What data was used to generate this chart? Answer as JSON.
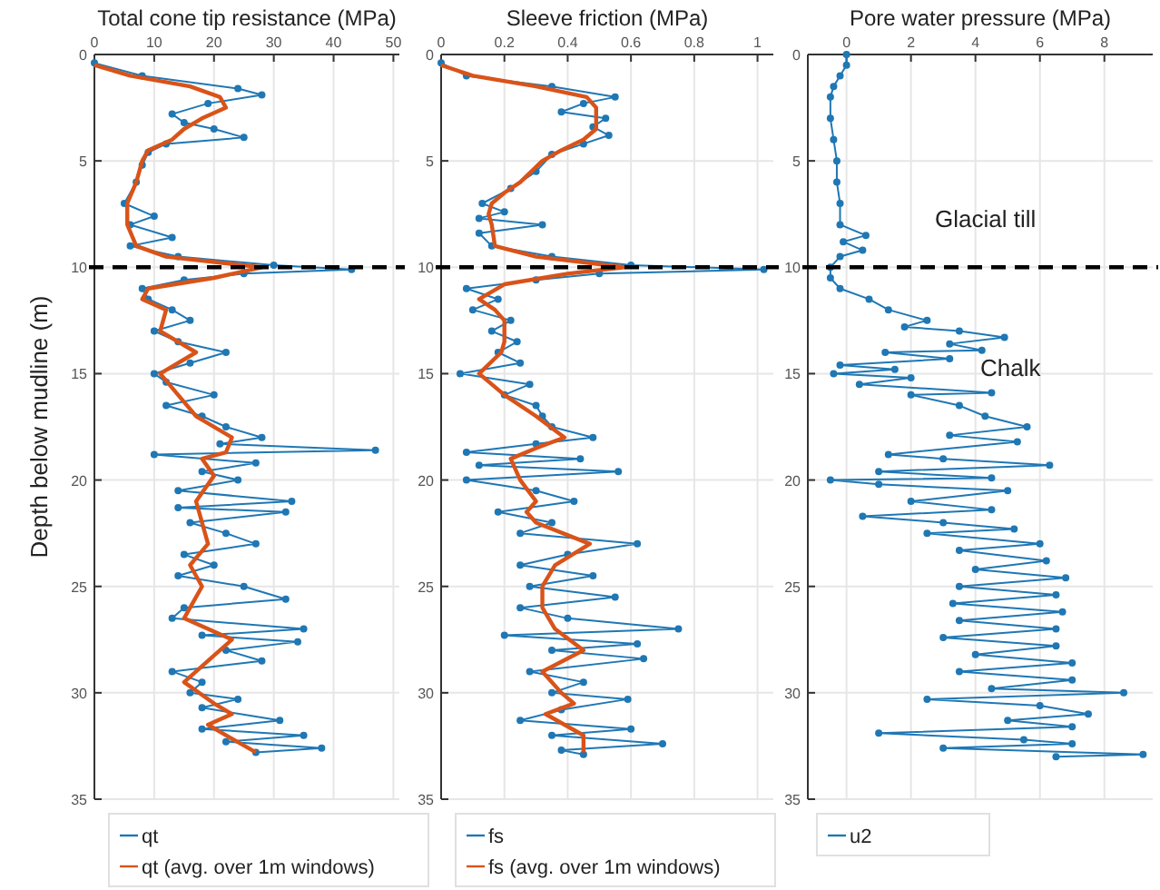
{
  "chart_data": [
    {
      "type": "line",
      "title": "Total cone tip resistance (MPa)",
      "ylabel": "Depth below mudline (m)",
      "xlim": [
        0,
        51
      ],
      "xticks": [
        0,
        10,
        20,
        30,
        40,
        50
      ],
      "ylim": [
        35,
        0
      ],
      "yticks": [
        0,
        5,
        10,
        15,
        20,
        25,
        30,
        35
      ],
      "grid": true,
      "legend": "bottom",
      "ref_lines": [
        {
          "axis": "y",
          "value": 10,
          "color": "#000000",
          "line_style": "dashed"
        }
      ],
      "series": [
        {
          "name": "qt",
          "color": "#1f77b4",
          "marker": "circle",
          "x": [
            0,
            8,
            24,
            28,
            19,
            13,
            15,
            20,
            25,
            12,
            9,
            8,
            7,
            5,
            10,
            6,
            13,
            6,
            14,
            30,
            43,
            25,
            15,
            8,
            9,
            13,
            16,
            10,
            14,
            22,
            16,
            10,
            12,
            20,
            12,
            18,
            22,
            28,
            21,
            47,
            10,
            27,
            18,
            24,
            14,
            33,
            14,
            32,
            16,
            22,
            27,
            15,
            20,
            14,
            25,
            32,
            15,
            13,
            35,
            18,
            34,
            22,
            28,
            13,
            18,
            16,
            24,
            18,
            31,
            18,
            35,
            22,
            38,
            27
          ],
          "values": [
            0.4,
            1,
            1.6,
            1.9,
            2.3,
            2.8,
            3.2,
            3.5,
            3.9,
            4.2,
            4.6,
            5.2,
            6,
            7,
            7.6,
            8,
            8.6,
            9,
            9.5,
            9.9,
            10.1,
            10.3,
            10.6,
            11,
            11.5,
            12,
            12.5,
            13,
            13.5,
            14,
            14.5,
            15,
            15.4,
            16,
            16.5,
            17,
            17.5,
            18,
            18.3,
            18.6,
            18.8,
            19.2,
            19.6,
            20,
            20.5,
            21,
            21.3,
            21.5,
            22,
            22.5,
            23,
            23.5,
            24,
            24.5,
            25,
            25.6,
            26,
            26.5,
            27,
            27.3,
            27.6,
            28,
            28.5,
            29,
            29.5,
            30,
            30.3,
            30.7,
            31.3,
            31.7,
            32,
            32.3,
            32.6,
            32.8
          ]
        },
        {
          "name": "qt (avg. over 1m windows)",
          "color": "#d95319",
          "marker": "none",
          "x": [
            0,
            6,
            16,
            21,
            22,
            18,
            15,
            13,
            9,
            8,
            7,
            5.5,
            5.5,
            7,
            12,
            28,
            20,
            9,
            8,
            12,
            11,
            17,
            11,
            14,
            17,
            23,
            22,
            18,
            20,
            17,
            18,
            19,
            16,
            18,
            16,
            15,
            23,
            19,
            15,
            20,
            23,
            19,
            22,
            27
          ],
          "values": [
            0.5,
            1,
            1.5,
            2,
            2.5,
            3,
            3.5,
            4,
            4.5,
            5,
            6,
            7,
            8,
            9,
            9.5,
            10,
            10.5,
            11,
            11.5,
            12,
            13,
            14,
            15,
            16,
            17,
            18,
            18.7,
            19,
            19.8,
            21,
            22,
            23,
            24,
            25,
            26,
            26.5,
            27.5,
            28.5,
            29.5,
            30.5,
            31,
            31.5,
            32,
            32.8
          ]
        }
      ]
    },
    {
      "type": "line",
      "title": "Sleeve friction (MPa)",
      "xlim": [
        0,
        1.05
      ],
      "xticks": [
        0,
        0.2,
        0.4,
        0.6,
        0.8,
        1
      ],
      "ylim": [
        35,
        0
      ],
      "yticks": [
        0,
        5,
        10,
        15,
        20,
        25,
        30,
        35
      ],
      "grid": true,
      "legend": "bottom",
      "ref_lines": [
        {
          "axis": "y",
          "value": 10,
          "color": "#000000",
          "line_style": "dashed"
        }
      ],
      "series": [
        {
          "name": "fs",
          "color": "#1f77b4",
          "marker": "circle",
          "x": [
            0,
            0.08,
            0.35,
            0.55,
            0.45,
            0.38,
            0.52,
            0.48,
            0.53,
            0.45,
            0.35,
            0.3,
            0.22,
            0.13,
            0.2,
            0.12,
            0.32,
            0.12,
            0.16,
            0.35,
            0.6,
            1.02,
            0.5,
            0.3,
            0.08,
            0.18,
            0.1,
            0.22,
            0.16,
            0.24,
            0.18,
            0.25,
            0.06,
            0.28,
            0.2,
            0.3,
            0.32,
            0.35,
            0.48,
            0.3,
            0.08,
            0.44,
            0.12,
            0.56,
            0.08,
            0.3,
            0.42,
            0.18,
            0.35,
            0.25,
            0.62,
            0.4,
            0.25,
            0.48,
            0.28,
            0.55,
            0.25,
            0.4,
            0.75,
            0.2,
            0.62,
            0.35,
            0.64,
            0.28,
            0.45,
            0.35,
            0.59,
            0.38,
            0.25,
            0.6,
            0.35,
            0.7,
            0.38,
            0.45
          ],
          "values": [
            0.4,
            1,
            1.5,
            2,
            2.3,
            2.7,
            3,
            3.4,
            3.8,
            4.2,
            4.7,
            5.5,
            6.3,
            7,
            7.4,
            7.7,
            8,
            8.4,
            9,
            9.5,
            9.9,
            10.1,
            10.3,
            10.6,
            11,
            11.5,
            12,
            12.5,
            13,
            13.5,
            14,
            14.5,
            15,
            15.5,
            16,
            16.5,
            17,
            17.5,
            18,
            18.3,
            18.7,
            19,
            19.3,
            19.6,
            20,
            20.5,
            21,
            21.5,
            22,
            22.5,
            23,
            23.5,
            24,
            24.5,
            25,
            25.5,
            26,
            26.5,
            27,
            27.3,
            27.7,
            28,
            28.4,
            29,
            29.5,
            30,
            30.3,
            30.8,
            31.3,
            31.7,
            32,
            32.4,
            32.7,
            32.9
          ]
        },
        {
          "name": "fs (avg. over 1m windows)",
          "color": "#d95319",
          "marker": "none",
          "x": [
            0,
            0.1,
            0.3,
            0.46,
            0.49,
            0.49,
            0.49,
            0.45,
            0.38,
            0.32,
            0.25,
            0.2,
            0.16,
            0.15,
            0.16,
            0.17,
            0.3,
            0.58,
            0.4,
            0.2,
            0.12,
            0.17,
            0.2,
            0.2,
            0.19,
            0.12,
            0.2,
            0.3,
            0.39,
            0.3,
            0.22,
            0.25,
            0.3,
            0.27,
            0.3,
            0.47,
            0.36,
            0.32,
            0.32,
            0.36,
            0.45,
            0.32,
            0.38,
            0.42,
            0.33,
            0.45,
            0.45
          ],
          "values": [
            0.5,
            1,
            1.5,
            2,
            2.5,
            3,
            3.5,
            4,
            4.5,
            5,
            6,
            6.5,
            7,
            7.5,
            8,
            9,
            9.5,
            10,
            10.3,
            10.8,
            11.5,
            12,
            12.5,
            13.5,
            14,
            15,
            16,
            17,
            18,
            18.5,
            19,
            20,
            21,
            21.5,
            22,
            23,
            24,
            25,
            26,
            27,
            28,
            29,
            30,
            30.5,
            31,
            32,
            32.8
          ]
        }
      ]
    },
    {
      "type": "line",
      "title": "Pore water pressure (MPa)",
      "xlim": [
        -1.2,
        9.5
      ],
      "xticks": [
        0,
        2,
        4,
        6,
        8
      ],
      "ylim": [
        35,
        0
      ],
      "yticks": [
        0,
        5,
        10,
        15,
        20,
        25,
        30,
        35
      ],
      "grid": true,
      "legend": "bottom",
      "ref_lines": [
        {
          "axis": "y",
          "value": 10,
          "color": "#000000",
          "line_style": "dashed"
        }
      ],
      "annotations": [
        "Glacial till",
        "Chalk"
      ],
      "series": [
        {
          "name": "u2",
          "color": "#1f77b4",
          "marker": "circle",
          "x": [
            0,
            0,
            -0.2,
            -0.4,
            -0.5,
            -0.5,
            -0.4,
            -0.3,
            -0.3,
            -0.2,
            -0.2,
            0.6,
            -0.1,
            0.5,
            -0.2,
            -0.5,
            -0.5,
            -0.2,
            0.7,
            1.3,
            2.5,
            1.8,
            3.5,
            4.9,
            3.2,
            4.2,
            1.2,
            3.2,
            -0.2,
            1.5,
            -0.4,
            2,
            0.4,
            4.5,
            2,
            3.5,
            4.3,
            5.6,
            3.2,
            5.3,
            1.3,
            3,
            6.3,
            1,
            4.5,
            -0.5,
            1,
            5,
            2,
            4.5,
            0.5,
            3,
            5.2,
            2.5,
            6,
            3.5,
            6.2,
            4,
            6.8,
            3.5,
            6.5,
            3.3,
            6.7,
            3.5,
            6.5,
            3,
            6.5,
            4,
            7,
            3.5,
            7,
            4.5,
            8.6,
            2.5,
            6,
            7.5,
            5,
            7,
            1,
            5.5,
            7,
            3,
            9.2,
            6.5
          ],
          "values": [
            0,
            0.5,
            1,
            1.5,
            2,
            3,
            4,
            5,
            6,
            7,
            8,
            8.5,
            8.8,
            9.2,
            9.5,
            10,
            10.5,
            11,
            11.5,
            12,
            12.5,
            12.8,
            13,
            13.3,
            13.6,
            13.9,
            14,
            14.3,
            14.6,
            14.8,
            15,
            15.2,
            15.5,
            15.9,
            16,
            16.5,
            17,
            17.5,
            17.9,
            18.2,
            18.8,
            19,
            19.3,
            19.6,
            19.9,
            20,
            20.2,
            20.5,
            21,
            21.4,
            21.7,
            22,
            22.3,
            22.5,
            23,
            23.3,
            23.8,
            24.2,
            24.6,
            25,
            25.4,
            25.8,
            26.2,
            26.6,
            27,
            27.4,
            27.8,
            28.2,
            28.6,
            29,
            29.4,
            29.8,
            30,
            30.3,
            30.6,
            31,
            31.3,
            31.6,
            31.9,
            32.2,
            32.4,
            32.6,
            32.9,
            33
          ]
        }
      ]
    }
  ]
}
